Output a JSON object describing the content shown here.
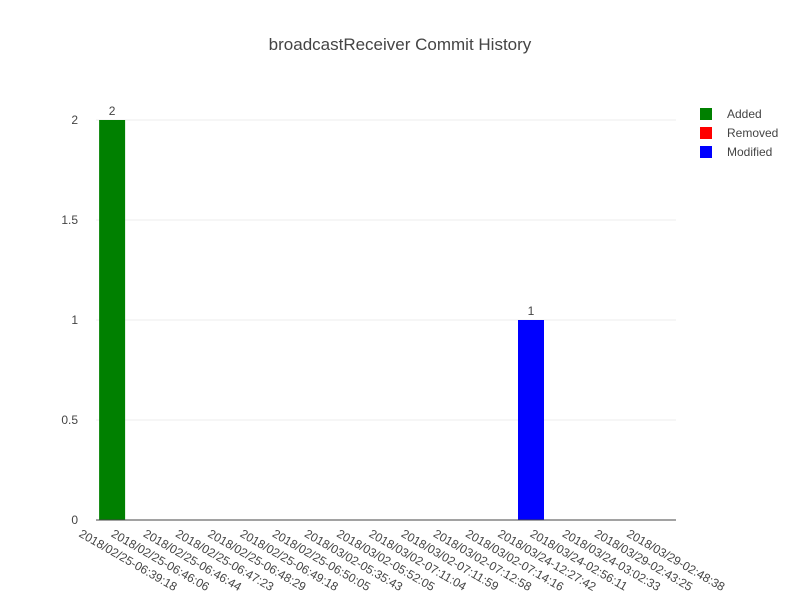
{
  "chart_data": {
    "type": "bar",
    "title": "broadcastReceiver Commit History",
    "xlabel": "",
    "ylabel": "",
    "ylim": [
      0,
      2.1
    ],
    "yticks": [
      0,
      0.5,
      1,
      1.5,
      2
    ],
    "ytick_labels": [
      "0",
      "0.5",
      "1",
      "1.5",
      "2"
    ],
    "grid": true,
    "legend_position": "top-right",
    "categories": [
      "2018/02/25-06:39:18",
      "2018/02/25-06:46:06",
      "2018/02/25-06:46:44",
      "2018/02/25-06:47:23",
      "2018/02/25-06:48:29",
      "2018/02/25-06:49:18",
      "2018/02/25-06:50:05",
      "2018/03/02-05:35:43",
      "2018/03/02-05:52:05",
      "2018/03/02-07:11:04",
      "2018/03/02-07:11:59",
      "2018/03/02-07:12:58",
      "2018/03/02-07:14:16",
      "2018/03/24-12:27:42",
      "2018/03/24-02:56:11",
      "2018/03/24-03:02:33",
      "2018/03/29-02:43:25",
      "2018/03/29-02:48:38"
    ],
    "series": [
      {
        "name": "Added",
        "color": "#008000",
        "values": [
          2,
          0,
          0,
          0,
          0,
          0,
          0,
          0,
          0,
          0,
          0,
          0,
          0,
          0,
          0,
          0,
          0,
          0
        ]
      },
      {
        "name": "Removed",
        "color": "#ff0000",
        "values": [
          0,
          0,
          0,
          0,
          0,
          0,
          0,
          0,
          0,
          0,
          0,
          0,
          0,
          0,
          0,
          0,
          0,
          0
        ]
      },
      {
        "name": "Modified",
        "color": "#0000ff",
        "values": [
          0,
          0,
          0,
          0,
          0,
          0,
          0,
          0,
          0,
          0,
          0,
          0,
          0,
          1,
          0,
          0,
          0,
          0
        ]
      }
    ]
  }
}
